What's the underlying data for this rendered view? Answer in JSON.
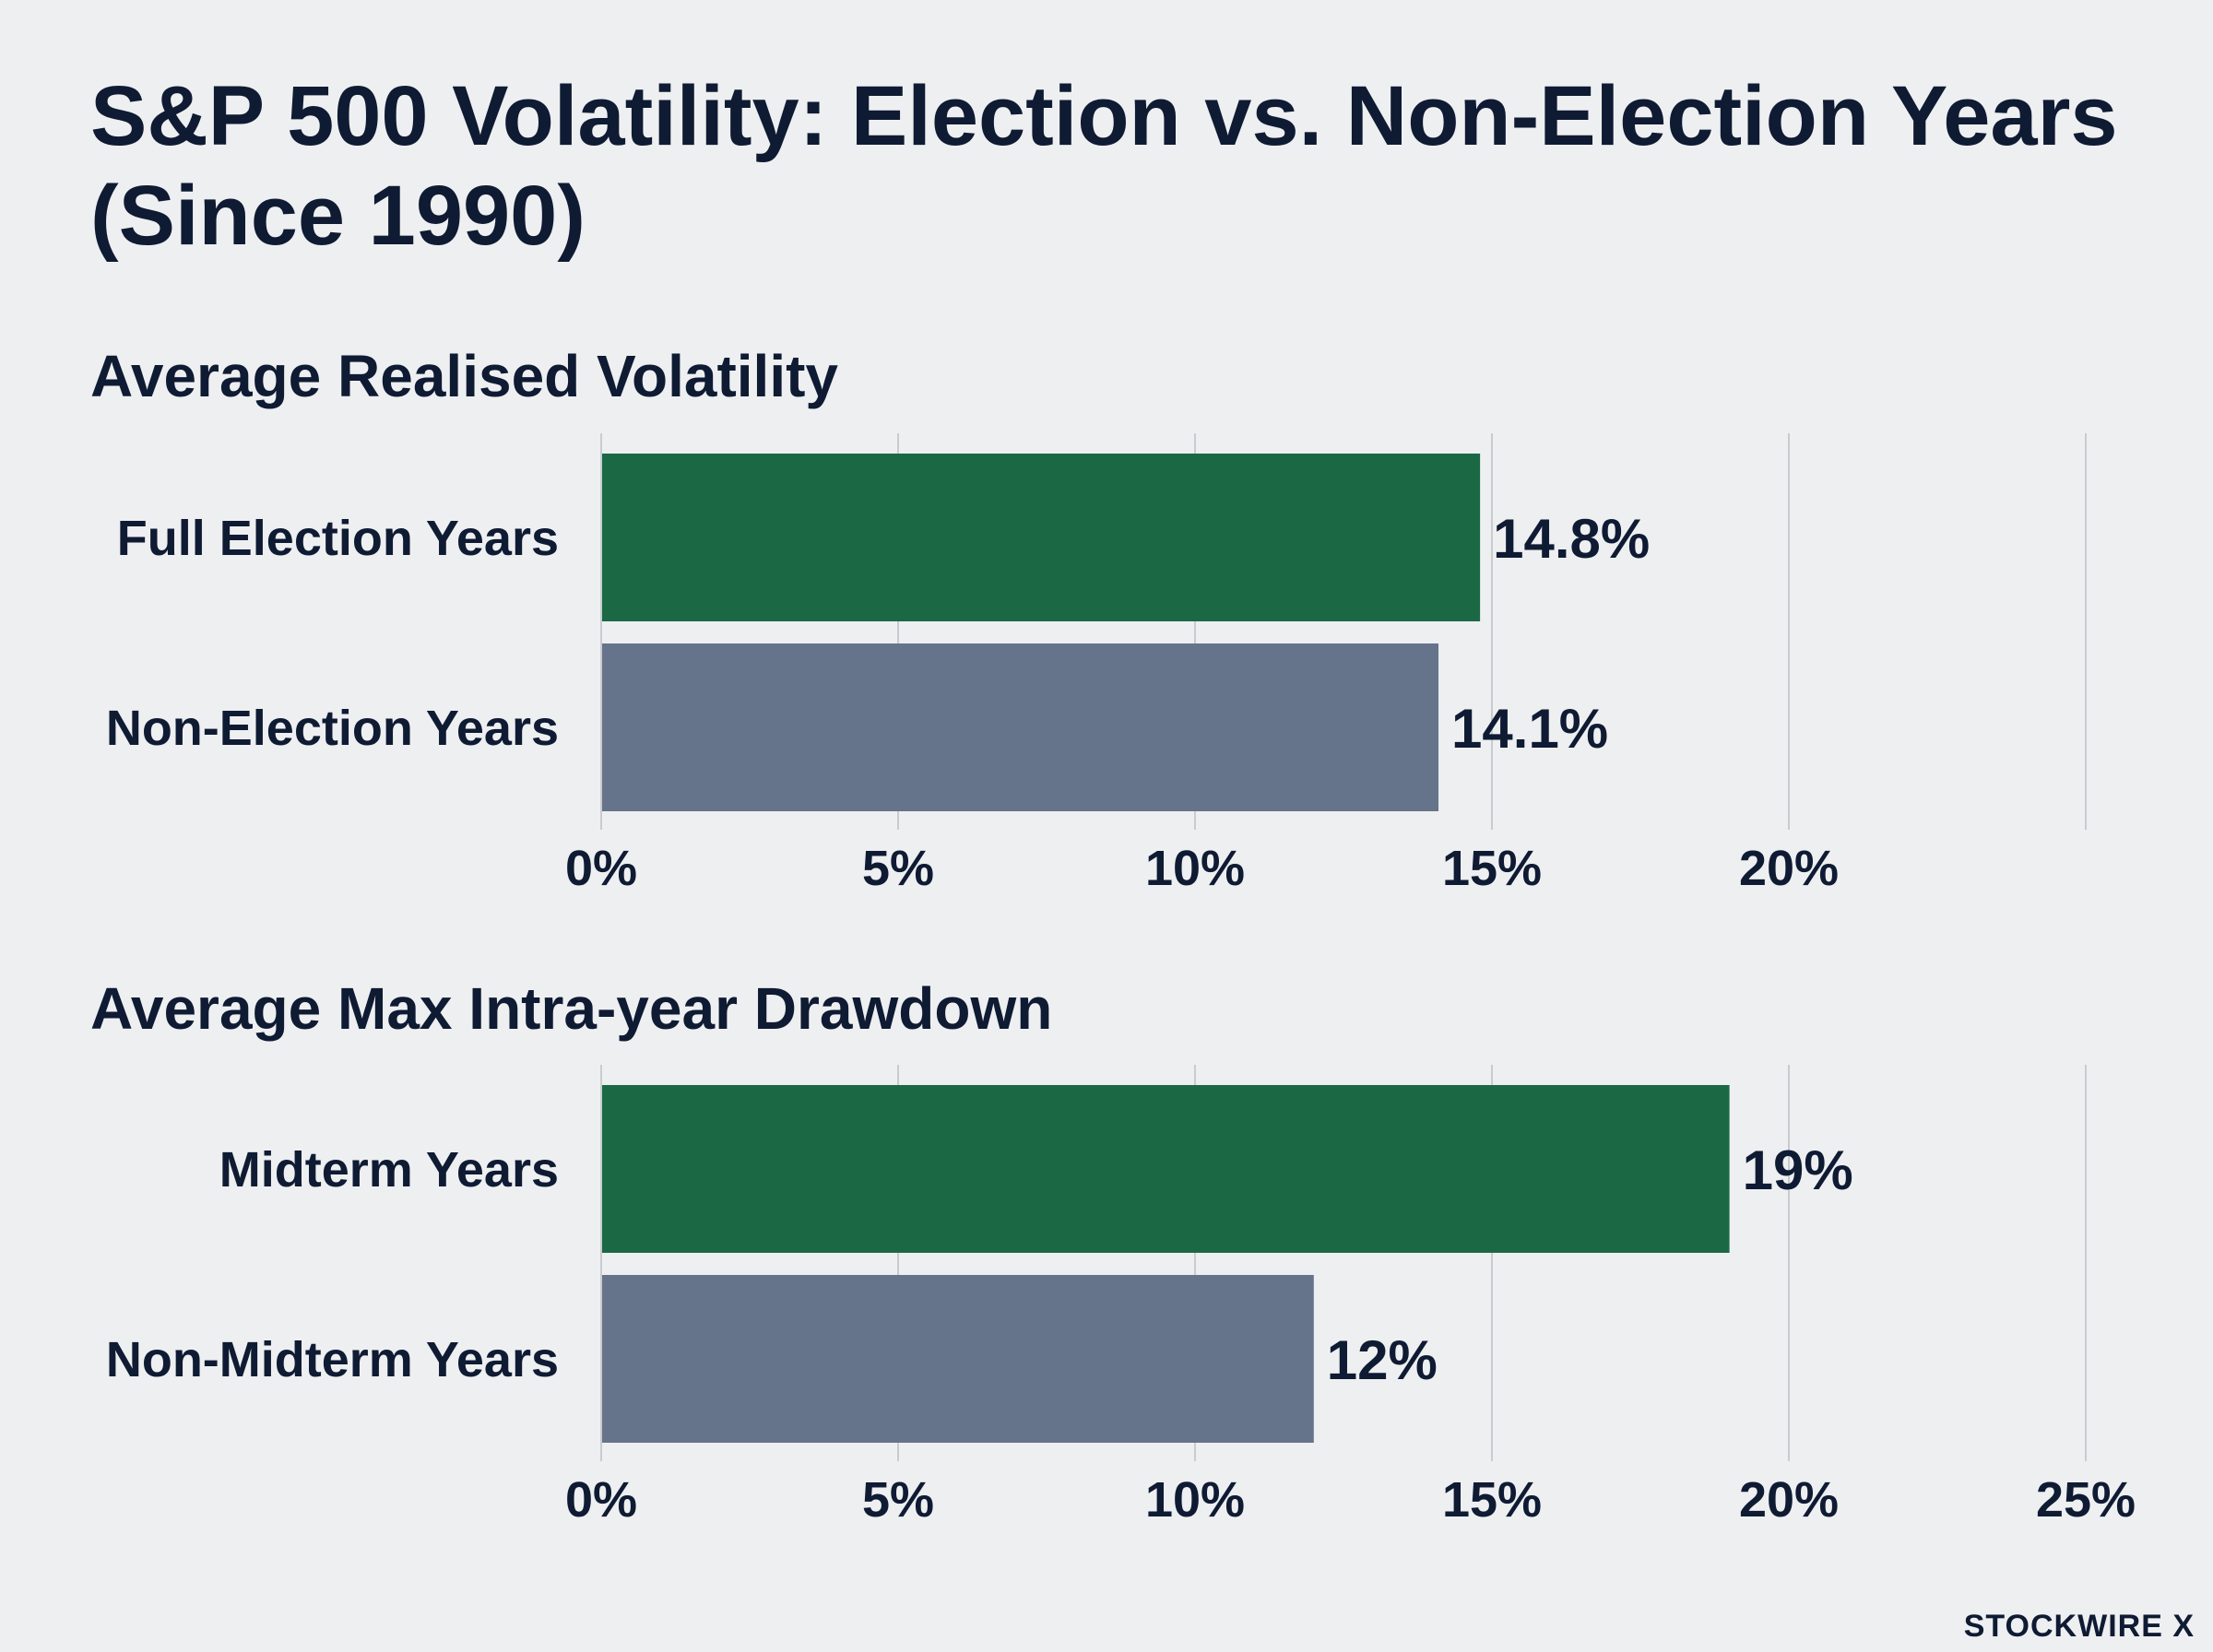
{
  "title": "S&P 500 Volatility: Election vs. Non-Election Years (Since 1990)",
  "brand": "STOCKWIRE X",
  "colors": {
    "background": "#eeeff1",
    "text": "#0f1b33",
    "green": "#1b6944",
    "slate": "#65748a",
    "grid": "#c9cbcf"
  },
  "chart_data": [
    {
      "type": "bar",
      "orientation": "horizontal",
      "title": "Average Realised Volatility",
      "categories": [
        "Full Election Years",
        "Non-Election Years"
      ],
      "values": [
        14.8,
        14.1
      ],
      "value_labels": [
        "14.8%",
        "14.1%"
      ],
      "bar_colors": [
        "#1b6944",
        "#65748a"
      ],
      "xlim": [
        0,
        25
      ],
      "xticks": [
        0,
        5,
        10,
        15,
        20
      ],
      "xtick_labels": [
        "0%",
        "5%",
        "10%",
        "15%",
        "20%"
      ],
      "grid": true
    },
    {
      "type": "bar",
      "orientation": "horizontal",
      "title": "Average Max Intra-year Drawdown",
      "categories": [
        "Midterm Years",
        "Non-Midterm Years"
      ],
      "values": [
        19,
        12
      ],
      "value_labels": [
        "19%",
        "12%"
      ],
      "bar_colors": [
        "#1b6944",
        "#65748a"
      ],
      "xlim": [
        0,
        25
      ],
      "xticks": [
        0,
        5,
        10,
        15,
        20,
        25
      ],
      "xtick_labels": [
        "0%",
        "5%",
        "10%",
        "15%",
        "20%",
        "25%"
      ],
      "grid": true
    }
  ]
}
